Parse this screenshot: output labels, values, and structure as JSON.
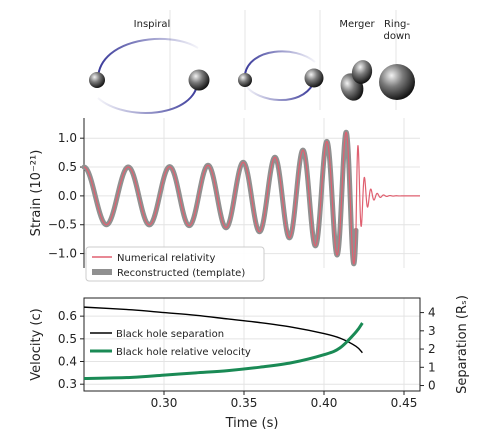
{
  "phases": {
    "inspiral": "Inspiral",
    "merger": "Merger",
    "ringdown_1": "Ring-",
    "ringdown_2": "down"
  },
  "colors": {
    "nr": "#e06070",
    "template": "#909090",
    "separation": "#000000",
    "velocity": "#1a8a55",
    "orbit": "#3a3a9a"
  },
  "chart_data": [
    {
      "type": "line",
      "xlim": [
        0.25,
        0.46
      ],
      "ylim": [
        -1.25,
        1.35
      ],
      "ylabel": "Strain (10⁻²¹)",
      "yticks": [
        1.0,
        0.5,
        0.0,
        -0.5,
        -1.0
      ],
      "ytick_labels": [
        "1.0",
        "0.5",
        "0.0",
        "−0.5",
        "−1.0"
      ],
      "grid": true,
      "legend_placement": "bottom-left",
      "series": [
        {
          "name": "Numerical relativity",
          "color": "#e06070"
        },
        {
          "name": "Reconstructed (template)",
          "color": "#909090"
        }
      ],
      "waveform": {
        "t_merger": 0.42,
        "f0_hz": 35,
        "f_peak_hz": 250,
        "amp_start": 0.5,
        "amp_peak": 1.2,
        "ringdown_tau_s": 0.004,
        "template_end_s": 0.42
      }
    },
    {
      "type": "line",
      "xlim": [
        0.25,
        0.46
      ],
      "xlabel": "Time (s)",
      "xticks": [
        0.3,
        0.35,
        0.4,
        0.45
      ],
      "xtick_labels": [
        "0.30",
        "0.35",
        "0.40",
        "0.45"
      ],
      "ylabel": "Velocity (c)",
      "ylim": [
        0.27,
        0.68
      ],
      "yticks": [
        0.3,
        0.4,
        0.5,
        0.6
      ],
      "ytick_labels": [
        "0.3",
        "0.4",
        "0.5",
        "0.6"
      ],
      "ylabel_right": "Separation (Rₛ)",
      "ylim_right": [
        -0.3,
        4.8
      ],
      "yticks_right": [
        0,
        1,
        2,
        3,
        4
      ],
      "ytick_labels_right": [
        "0",
        "1",
        "2",
        "3",
        "4"
      ],
      "grid": true,
      "legend_placement": "top-left",
      "series": [
        {
          "name": "Black hole separation",
          "axis": "right",
          "color": "#000000",
          "x": [
            0.25,
            0.28,
            0.3,
            0.32,
            0.34,
            0.36,
            0.38,
            0.4,
            0.41,
            0.42,
            0.424
          ],
          "values": [
            4.3,
            4.15,
            4.0,
            3.85,
            3.65,
            3.45,
            3.2,
            2.85,
            2.6,
            2.15,
            1.8
          ]
        },
        {
          "name": "Black hole relative velocity",
          "axis": "left",
          "color": "#1a8a55",
          "x": [
            0.25,
            0.28,
            0.3,
            0.32,
            0.34,
            0.36,
            0.38,
            0.4,
            0.41,
            0.42,
            0.424
          ],
          "values": [
            0.325,
            0.33,
            0.34,
            0.35,
            0.36,
            0.375,
            0.395,
            0.43,
            0.46,
            0.53,
            0.57
          ]
        }
      ]
    }
  ]
}
